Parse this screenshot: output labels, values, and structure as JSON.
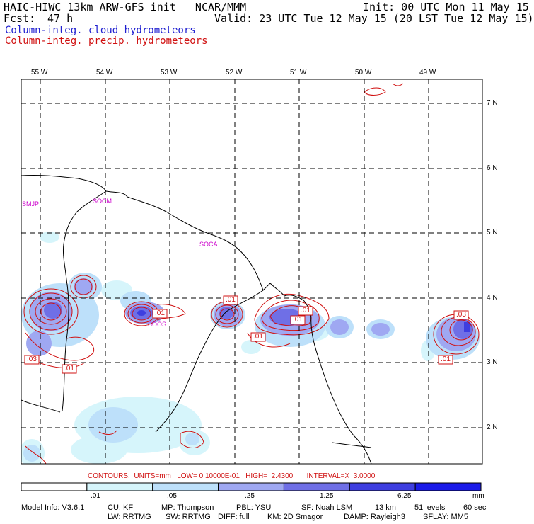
{
  "header": {
    "title": "HAIC-HIWC 13km ARW-GFS init   NCAR/MMM",
    "init": "Init: 00 UTC Mon 11 May 15",
    "fcst_label": "Fcst:",
    "fcst_value": "47 h",
    "valid": "Valid: 23 UTC Tue 12 May 15 (20 LST Tue 12 May 15)",
    "field1": "Column-integ. cloud hydrometeors",
    "field2": "Column-integ. precip. hydrometeors"
  },
  "colors": {
    "field1": "#2020d0",
    "field2": "#d01010",
    "coast": "#000000",
    "places": "#cc00cc"
  },
  "map": {
    "lon_labels": [
      "55 W",
      "54 W",
      "53 W",
      "52 W",
      "51 W",
      "50 W",
      "49 W"
    ],
    "lat_labels": [
      "7 N",
      "6 N",
      "5 N",
      "4 N",
      "3 N",
      "2 N"
    ],
    "places": [
      "SMJP",
      "SOCM",
      "SOCA",
      "SOOS"
    ],
    "contour_labels": [
      ".01",
      ".01",
      ".01",
      ".01",
      ".01",
      ".03",
      ".01",
      ".03",
      ".01"
    ]
  },
  "colorbar": {
    "info": "CONTOURS:  UNITS=mm   LOW= 0.10000E-01   HIGH=  2.4300       INTERVAL=X  3.0000",
    "ticks": [
      ".01",
      ".05",
      ".25",
      "1.25",
      "6.25"
    ],
    "unit": "mm",
    "colors": [
      "#ffffff",
      "#d6f5fb",
      "#bde0fa",
      "#9fa8f2",
      "#6f6fe6",
      "#3e3ee0",
      "#1a1ae8"
    ]
  },
  "footer": {
    "line1": [
      "Model Info: V3.6.1",
      "CU: KF",
      "MP: Thompson",
      "PBL: YSU",
      "SF: Noah LSM",
      "13 km",
      "51 levels",
      "60 sec"
    ],
    "line2": [
      "LW: RRTMG",
      "SW: RRTMG",
      "DIFF: full",
      "KM: 2D Smagor",
      "DAMP: Rayleigh3",
      "SFLAY: MM5"
    ]
  }
}
